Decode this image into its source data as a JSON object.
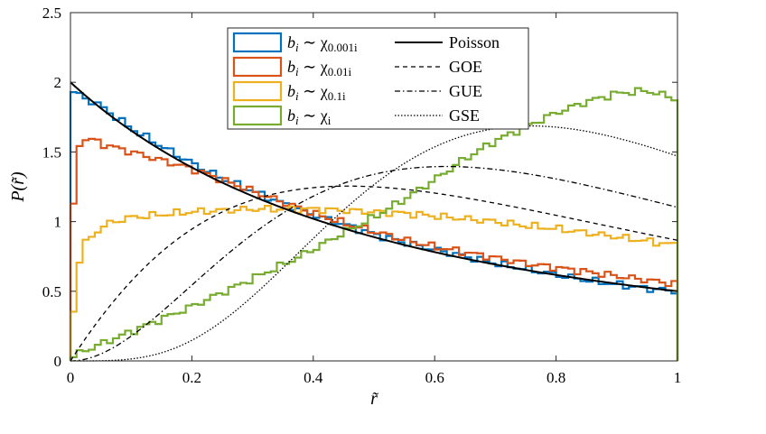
{
  "chart_data": {
    "type": "line",
    "title": "",
    "xlabel": "r̃",
    "ylabel": "P(r̃)",
    "xlim": [
      0,
      1
    ],
    "ylim": [
      0,
      2.5
    ],
    "x_ticks": [
      "0",
      "0.2",
      "0.4",
      "0.6",
      "0.8",
      "1"
    ],
    "y_ticks": [
      "0",
      "0.5",
      "1",
      "1.5",
      "2",
      "2.5"
    ],
    "grid": false,
    "legend_placement": "top-center",
    "colors": {
      "chi_0.001i": "#0072BD",
      "chi_0.01i": "#D95319",
      "chi_0.1i": "#EDB120",
      "chi_i": "#77AC30",
      "theory": "#000000"
    },
    "histogram_series": [
      {
        "name": "b_i ~ χ_0.001i",
        "legend_base": "b",
        "legend_index": "i",
        "legend_rel": " ∼ χ",
        "legend_sub": "0.001i",
        "color": "#0072BD",
        "x": [
          0.0,
          0.05,
          0.1,
          0.15,
          0.2,
          0.25,
          0.3,
          0.35,
          0.4,
          0.45,
          0.5,
          0.55,
          0.6,
          0.65,
          0.7,
          0.75,
          0.8,
          0.85,
          0.9,
          0.95,
          1.0
        ],
        "values": [
          1.94,
          1.83,
          1.67,
          1.54,
          1.42,
          1.31,
          1.22,
          1.13,
          1.05,
          0.98,
          0.91,
          0.85,
          0.8,
          0.75,
          0.7,
          0.66,
          0.62,
          0.58,
          0.55,
          0.52,
          0.5
        ]
      },
      {
        "name": "b_i ~ χ_0.01i",
        "legend_base": "b",
        "legend_index": "i",
        "legend_rel": " ∼ χ",
        "legend_sub": "0.01i",
        "color": "#D95319",
        "x": [
          0.0,
          0.01,
          0.03,
          0.05,
          0.1,
          0.15,
          0.2,
          0.25,
          0.3,
          0.35,
          0.4,
          0.45,
          0.5,
          0.55,
          0.6,
          0.65,
          0.7,
          0.75,
          0.8,
          0.85,
          0.9,
          0.95,
          1.0
        ],
        "values": [
          0.66,
          1.55,
          1.6,
          1.56,
          1.5,
          1.44,
          1.38,
          1.3,
          1.22,
          1.14,
          1.06,
          0.99,
          0.93,
          0.87,
          0.82,
          0.78,
          0.74,
          0.7,
          0.67,
          0.64,
          0.61,
          0.58,
          0.55
        ]
      },
      {
        "name": "b_i ~ χ_0.1i",
        "legend_base": "b",
        "legend_index": "i",
        "legend_rel": " ∼ χ",
        "legend_sub": "0.1i",
        "color": "#EDB120",
        "x": [
          0.0,
          0.01,
          0.02,
          0.04,
          0.06,
          0.08,
          0.1,
          0.15,
          0.2,
          0.25,
          0.3,
          0.35,
          0.4,
          0.45,
          0.5,
          0.55,
          0.6,
          0.65,
          0.7,
          0.75,
          0.8,
          0.85,
          0.9,
          0.95,
          1.0
        ],
        "values": [
          0.1,
          0.62,
          0.82,
          0.92,
          0.98,
          1.01,
          1.03,
          1.05,
          1.07,
          1.08,
          1.09,
          1.09,
          1.09,
          1.08,
          1.07,
          1.06,
          1.04,
          1.02,
          1.0,
          0.97,
          0.95,
          0.92,
          0.89,
          0.86,
          0.83
        ]
      },
      {
        "name": "b_i ~ χ_i",
        "legend_base": "b",
        "legend_index": "i",
        "legend_rel": " ∼ χ",
        "legend_sub": "i",
        "color": "#77AC30",
        "x": [
          0.0,
          0.01,
          0.05,
          0.1,
          0.15,
          0.2,
          0.25,
          0.3,
          0.35,
          0.4,
          0.45,
          0.5,
          0.55,
          0.6,
          0.65,
          0.7,
          0.75,
          0.8,
          0.85,
          0.9,
          0.95,
          1.0
        ],
        "values": [
          0.0,
          0.05,
          0.12,
          0.21,
          0.3,
          0.39,
          0.49,
          0.59,
          0.69,
          0.8,
          0.92,
          1.03,
          1.16,
          1.3,
          1.45,
          1.58,
          1.68,
          1.78,
          1.86,
          1.92,
          1.94,
          1.88
        ]
      }
    ],
    "curve_series": [
      {
        "name": "Poisson",
        "style": "solid",
        "formula": "2/(1+r)^2"
      },
      {
        "name": "GOE",
        "style": "dashed",
        "formula": "beta=1"
      },
      {
        "name": "GUE",
        "style": "dashdot",
        "formula": "beta=2"
      },
      {
        "name": "GSE",
        "style": "dotted",
        "formula": "beta=4"
      }
    ]
  }
}
